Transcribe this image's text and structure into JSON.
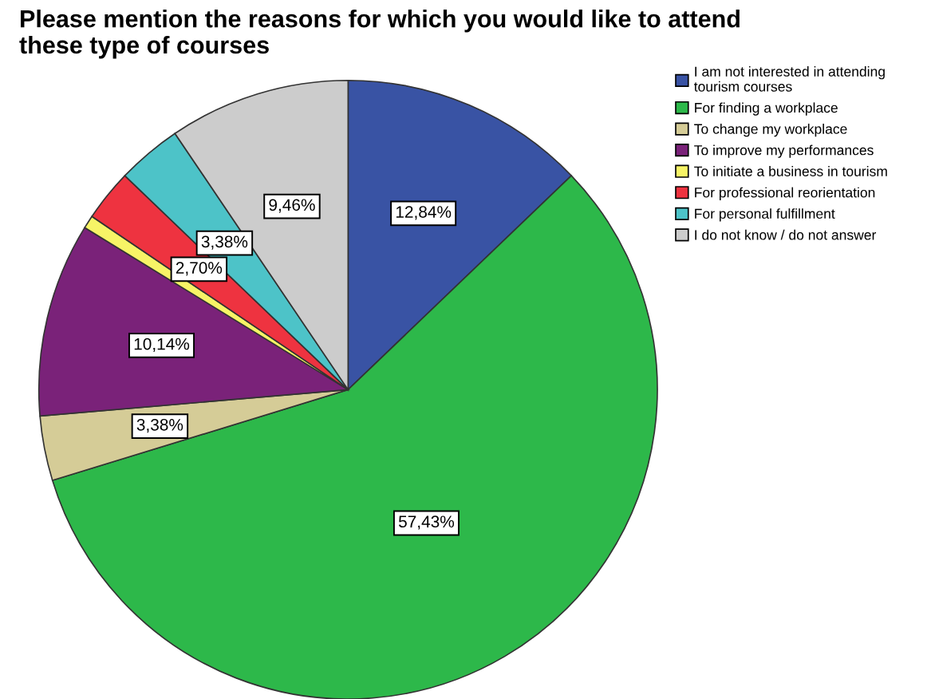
{
  "chart_data": {
    "type": "pie",
    "title": "Please mention the reasons for which you would like to attend these type of courses",
    "categories": [
      "I am not interested in attending tourism courses",
      "For finding a workplace",
      "To change my workplace",
      "To improve my performances",
      "To initiate a business in tourism",
      "For professional reorientation",
      "For personal fulfillment",
      "I do not know / do not answer"
    ],
    "values": [
      12.84,
      57.43,
      3.38,
      10.14,
      0.68,
      2.7,
      3.38,
      9.46
    ],
    "colors": [
      "#3953a4",
      "#2db84a",
      "#d5cc97",
      "#7a2279",
      "#f7f466",
      "#ee3340",
      "#4dc3c8",
      "#cccccc"
    ],
    "value_labels": [
      "12,84%",
      "57,43%",
      "3,38%",
      "10,14%",
      null,
      "2,70%",
      "3,38%",
      "9,46%"
    ],
    "legend": "right"
  }
}
